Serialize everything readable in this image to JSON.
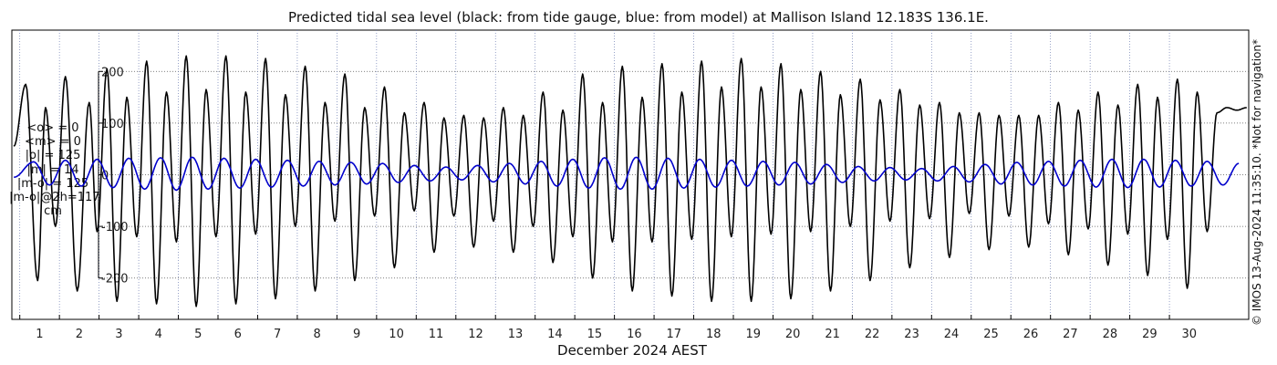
{
  "title": "Predicted tidal sea level (black: from tide gauge, blue: from model) at Mallison Island 12.183S 136.1E.",
  "stats_lines": [
    "<o> = 0",
    "<m> = 0",
    "|o| = 125",
    "|m| = 14",
    "|m-o| = 125",
    "|m-o|@2h=117",
    "cm"
  ],
  "credit": "© IMOS 13-Aug-2024 11:35:10. *Not for navigation*",
  "chart_data": {
    "type": "line",
    "title": "Predicted tidal sea level (black: from tide gauge, blue: from model) at Mallison Island 12.183S 136.1E.",
    "xlabel": "December 2024 AEST",
    "ylabel": "",
    "units": "cm",
    "xlim": [
      0.3,
      31.5
    ],
    "ylim": [
      -280,
      280
    ],
    "yticks": [
      -200,
      -100,
      0,
      100,
      200
    ],
    "xticks": [
      1,
      2,
      3,
      4,
      5,
      6,
      7,
      8,
      9,
      10,
      11,
      12,
      13,
      14,
      15,
      16,
      17,
      18,
      19,
      20,
      21,
      22,
      23,
      24,
      25,
      26,
      27,
      28,
      29,
      30
    ],
    "grid": true,
    "series": [
      {
        "name": "from tide gauge",
        "color": "#000000",
        "note_values": "tidal oscillation, sampled extremes",
        "x": [
          0.35,
          0.65,
          0.95,
          1.15,
          1.4,
          1.65,
          1.95,
          2.25,
          2.45,
          2.7,
          2.95,
          3.2,
          3.45,
          3.7,
          3.95,
          4.2,
          4.45,
          4.7,
          4.95,
          5.2,
          5.45,
          5.7,
          5.95,
          6.2,
          6.45,
          6.7,
          6.95,
          7.2,
          7.45,
          7.7,
          7.95,
          8.2,
          8.45,
          8.7,
          8.95,
          9.2,
          9.45,
          9.7,
          9.95,
          10.2,
          10.45,
          10.7,
          10.95,
          11.2,
          11.45,
          11.7,
          11.95,
          12.2,
          12.45,
          12.7,
          12.95,
          13.2,
          13.45,
          13.7,
          13.95,
          14.2,
          14.45,
          14.7,
          14.95,
          15.2,
          15.45,
          15.7,
          15.95,
          16.2,
          16.45,
          16.7,
          16.95,
          17.2,
          17.45,
          17.7,
          17.95,
          18.2,
          18.45,
          18.7,
          18.95,
          19.2,
          19.45,
          19.7,
          19.95,
          20.2,
          20.45,
          20.7,
          20.95,
          21.2,
          21.45,
          21.7,
          21.95,
          22.2,
          22.45,
          22.7,
          22.95,
          23.2,
          23.45,
          23.7,
          23.95,
          24.2,
          24.45,
          24.7,
          24.95,
          25.2,
          25.45,
          25.7,
          25.95,
          26.2,
          26.45,
          26.7,
          26.95,
          27.2,
          27.45,
          27.7,
          27.95,
          28.2,
          28.45,
          28.7,
          28.95,
          29.2,
          29.45,
          29.7,
          29.95,
          30.2,
          30.45,
          30.7,
          30.95,
          31.2,
          31.45
        ],
        "values": [
          55,
          175,
          -205,
          130,
          -100,
          190,
          -225,
          140,
          -110,
          205,
          -245,
          150,
          -120,
          220,
          -250,
          160,
          -130,
          230,
          -255,
          165,
          -120,
          230,
          -250,
          160,
          -115,
          225,
          -240,
          155,
          -100,
          210,
          -225,
          140,
          -90,
          195,
          -205,
          130,
          -80,
          170,
          -180,
          120,
          -70,
          140,
          -150,
          110,
          -80,
          115,
          -140,
          110,
          -90,
          130,
          -150,
          115,
          -100,
          160,
          -170,
          125,
          -120,
          195,
          -200,
          140,
          -130,
          210,
          -225,
          150,
          -130,
          215,
          -235,
          160,
          -125,
          220,
          -245,
          170,
          -120,
          225,
          -245,
          170,
          -115,
          215,
          -240,
          165,
          -110,
          200,
          -225,
          155,
          -100,
          185,
          -205,
          145,
          -90,
          165,
          -180,
          135,
          -85,
          140,
          -160,
          120,
          -75,
          120,
          -145,
          115,
          -80,
          115,
          -140,
          115,
          -95,
          140,
          -155,
          125,
          -105,
          160,
          -175,
          135,
          -115,
          175,
          -195,
          150,
          -125,
          185,
          -220,
          160,
          -110,
          120,
          130,
          125,
          130
        ]
      },
      {
        "name": "from model",
        "color": "#0000cc",
        "note_values": "small-amplitude oscillation",
        "x": [
          0.35,
          0.85,
          1.25,
          1.65,
          2.05,
          2.45,
          2.85,
          3.25,
          3.65,
          4.05,
          4.45,
          4.85,
          5.25,
          5.65,
          6.05,
          6.45,
          6.85,
          7.25,
          7.65,
          8.05,
          8.45,
          8.85,
          9.25,
          9.65,
          10.05,
          10.45,
          10.85,
          11.25,
          11.65,
          12.05,
          12.45,
          12.85,
          13.25,
          13.65,
          14.05,
          14.45,
          14.85,
          15.25,
          15.65,
          16.05,
          16.45,
          16.85,
          17.25,
          17.65,
          18.05,
          18.45,
          18.85,
          19.25,
          19.65,
          20.05,
          20.45,
          20.85,
          21.25,
          21.65,
          22.05,
          22.45,
          22.85,
          23.25,
          23.65,
          24.05,
          24.45,
          24.85,
          25.25,
          25.65,
          26.05,
          26.45,
          26.85,
          27.25,
          27.65,
          28.05,
          28.45,
          28.85,
          29.25,
          29.65,
          30.05,
          30.45,
          30.85,
          31.25
        ],
        "values": [
          -5,
          25,
          -20,
          28,
          -22,
          30,
          -25,
          32,
          -28,
          33,
          -30,
          34,
          -28,
          32,
          -26,
          30,
          -24,
          28,
          -22,
          26,
          -20,
          24,
          -18,
          22,
          -15,
          18,
          -12,
          15,
          -10,
          18,
          -14,
          22,
          -18,
          26,
          -22,
          30,
          -26,
          33,
          -28,
          34,
          -28,
          32,
          -26,
          30,
          -24,
          28,
          -22,
          26,
          -20,
          24,
          -18,
          20,
          -15,
          16,
          -12,
          14,
          -10,
          12,
          -12,
          16,
          -14,
          20,
          -18,
          24,
          -20,
          26,
          -22,
          28,
          -24,
          30,
          -25,
          30,
          -24,
          28,
          -22,
          26,
          -20,
          22
        ]
      }
    ]
  }
}
